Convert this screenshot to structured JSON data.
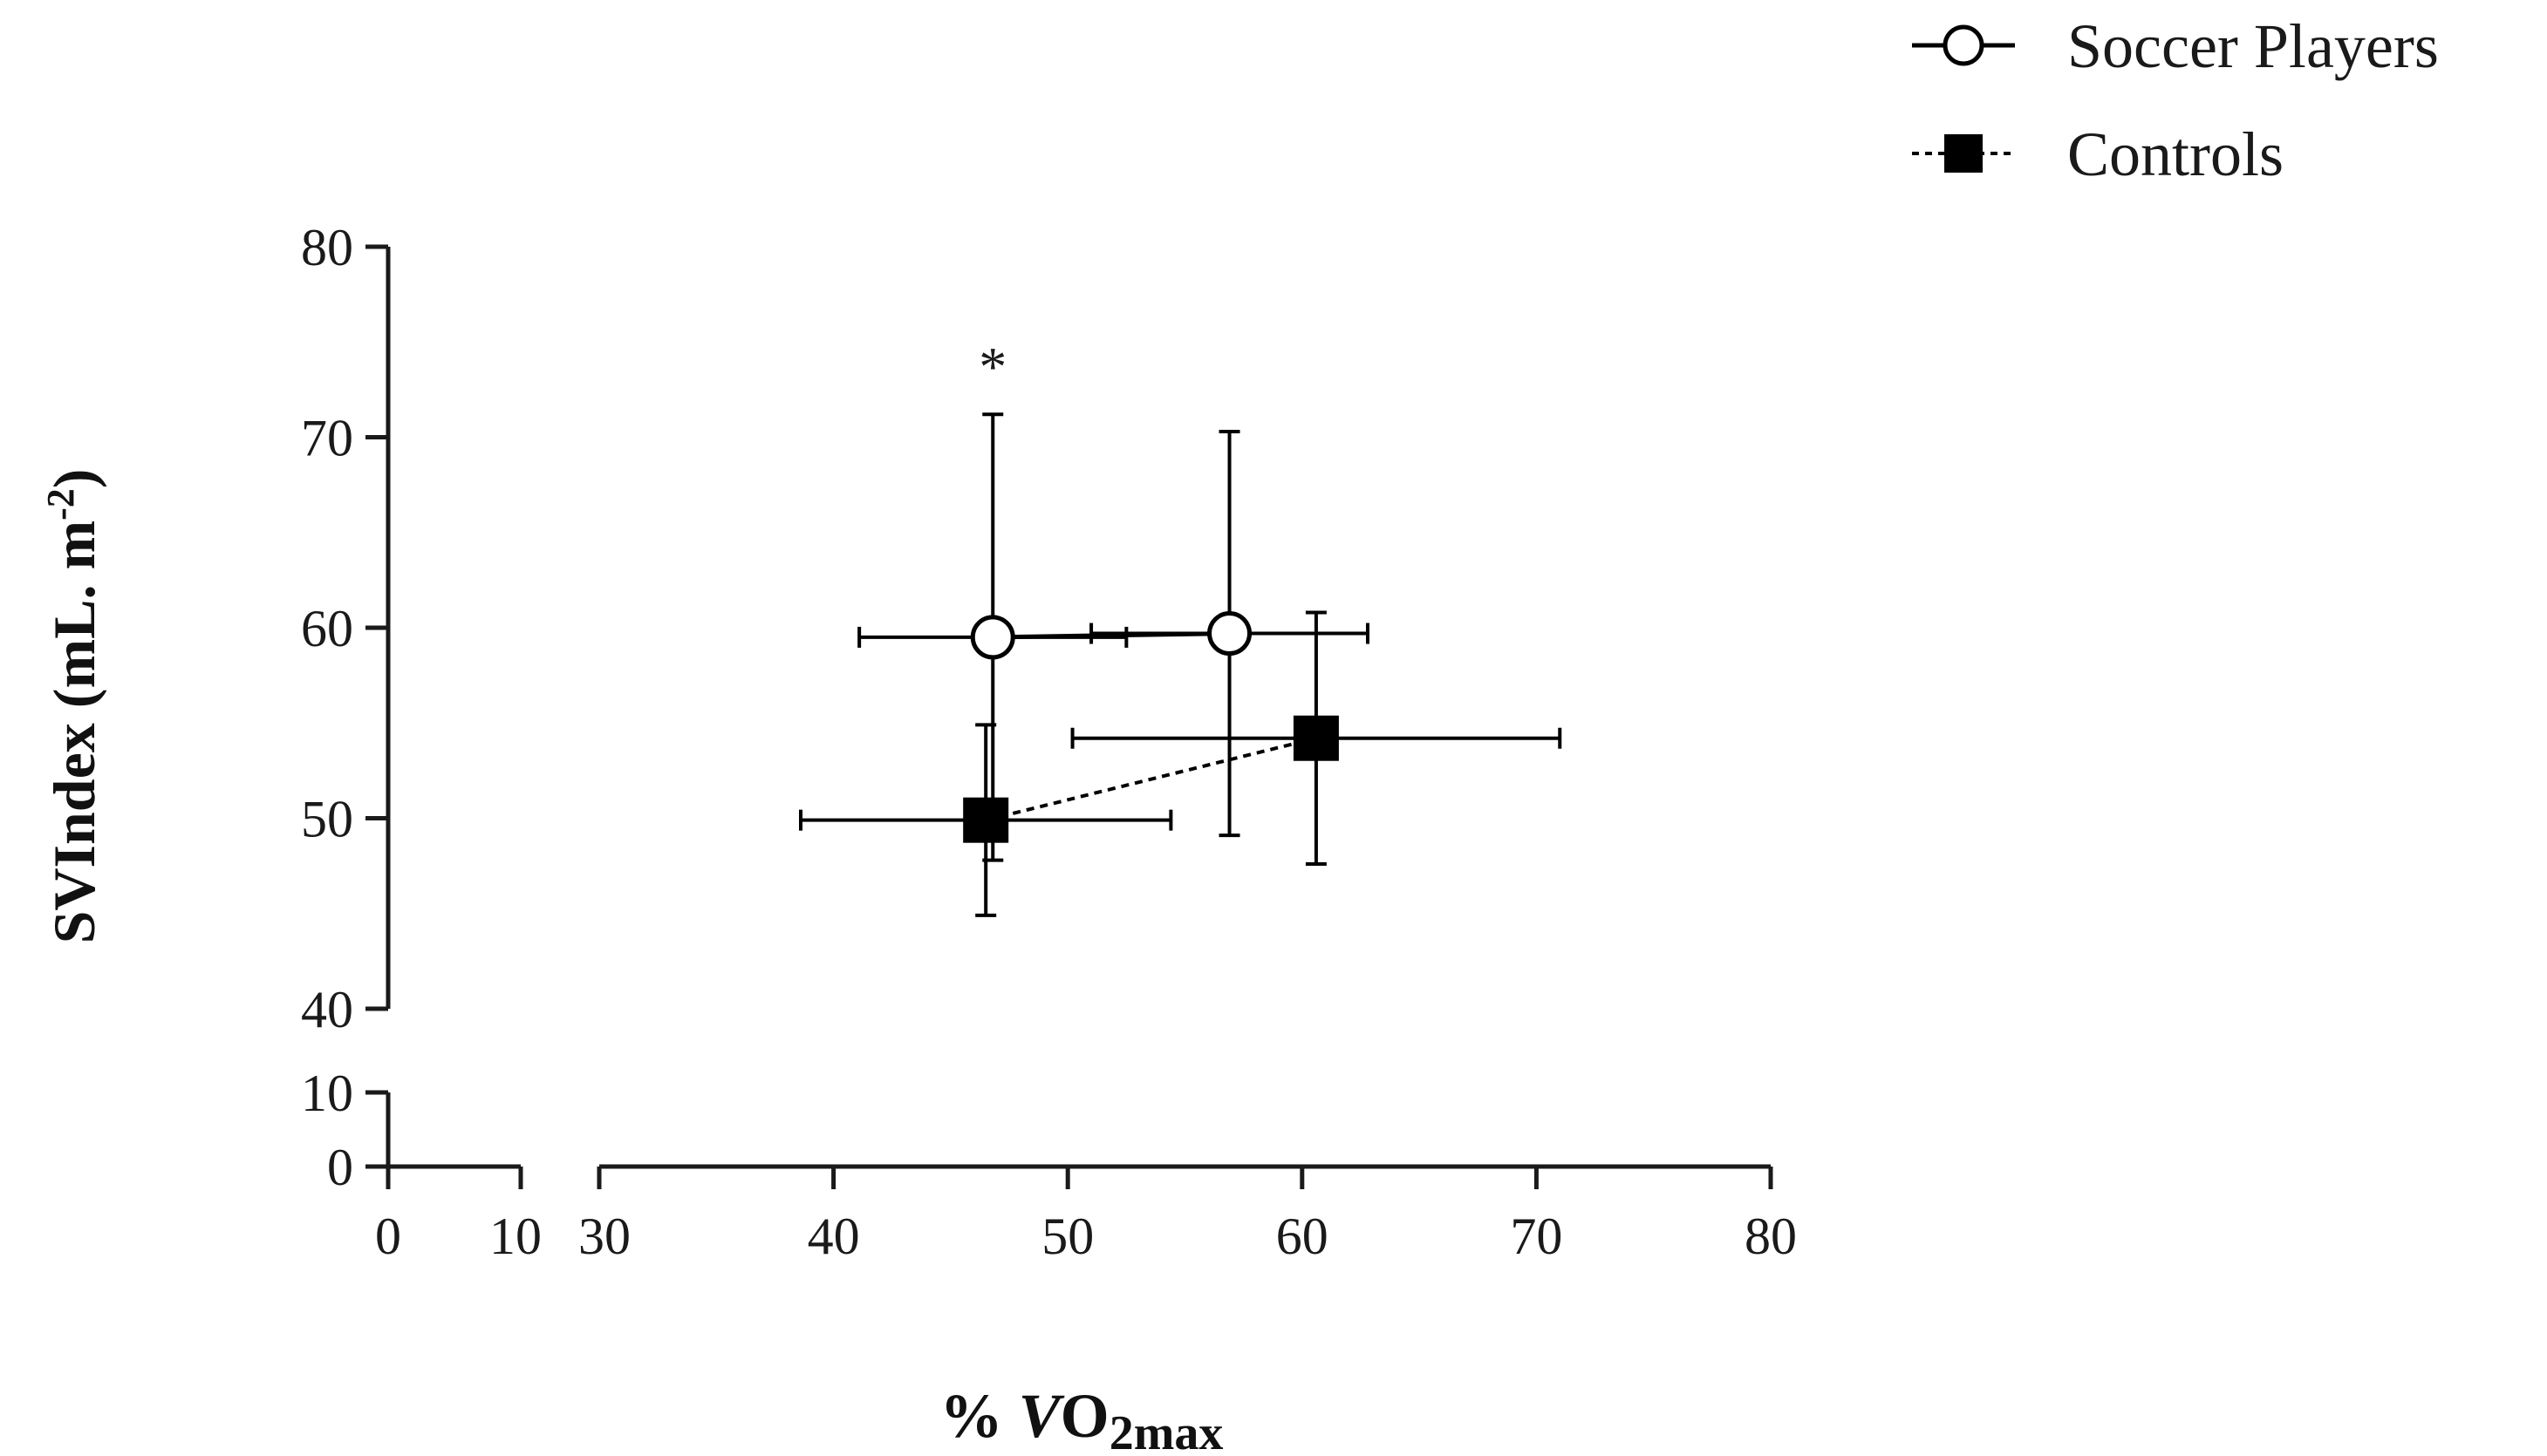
{
  "chart_data": {
    "type": "scatter",
    "title": "",
    "xlabel": {
      "prefix": "% ",
      "italic": "V",
      "main": "O",
      "sub": "2max"
    },
    "ylabel": {
      "main": "SVIndex (mL. m",
      "sup": "-2",
      "end": ")"
    },
    "x_axis": {
      "broken": true,
      "low_segment": {
        "range": [
          0,
          10
        ],
        "ticks": [
          0,
          10
        ]
      },
      "high_segment": {
        "range": [
          30,
          80
        ],
        "ticks": [
          30,
          40,
          50,
          60,
          70,
          80
        ]
      }
    },
    "y_axis": {
      "broken": true,
      "low_segment": {
        "range": [
          0,
          10
        ],
        "ticks": [
          0,
          10
        ]
      },
      "high_segment": {
        "range": [
          40,
          80
        ],
        "ticks": [
          40,
          50,
          60,
          70,
          80
        ]
      }
    },
    "legend_position": "top-right",
    "grid": false,
    "series": [
      {
        "name": "Soccer Players",
        "marker": "open-circle",
        "line": "solid",
        "color": "#000000",
        "points": [
          {
            "x": 46.8,
            "y": 59.5,
            "xerr": 5.7,
            "yerr": 11.7
          },
          {
            "x": 56.9,
            "y": 59.7,
            "xerr": 5.9,
            "yerr": 10.6
          }
        ]
      },
      {
        "name": "Controls",
        "marker": "filled-square",
        "line": "dotted",
        "color": "#000000",
        "points": [
          {
            "x": 46.5,
            "y": 49.9,
            "xerr": 7.9,
            "yerr": 5.0
          },
          {
            "x": 60.6,
            "y": 54.2,
            "xerr": 10.4,
            "yerr": 6.6
          }
        ]
      }
    ],
    "annotations": [
      {
        "text": "*",
        "x": 46.8,
        "y": 74.0
      }
    ]
  }
}
